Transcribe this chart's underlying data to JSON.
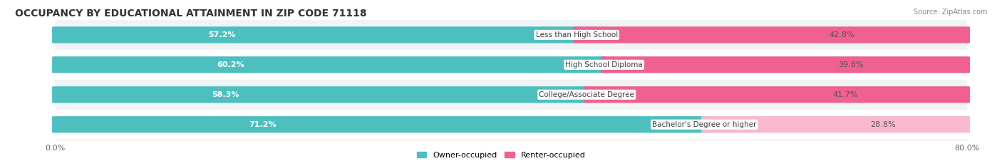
{
  "title": "OCCUPANCY BY EDUCATIONAL ATTAINMENT IN ZIP CODE 71118",
  "source": "Source: ZipAtlas.com",
  "categories": [
    "Less than High School",
    "High School Diploma",
    "College/Associate Degree",
    "Bachelor's Degree or higher"
  ],
  "owner_values": [
    57.2,
    60.2,
    58.3,
    71.2
  ],
  "renter_values": [
    42.8,
    39.8,
    41.7,
    28.8
  ],
  "owner_color": "#4DBFBF",
  "renter_colors": [
    "#F06090",
    "#F06090",
    "#F06090",
    "#F9B8CB"
  ],
  "legend_owner": "Owner-occupied",
  "legend_renter": "Renter-occupied",
  "title_fontsize": 10,
  "source_fontsize": 7,
  "figsize": [
    14.06,
    2.33
  ],
  "dpi": 100
}
